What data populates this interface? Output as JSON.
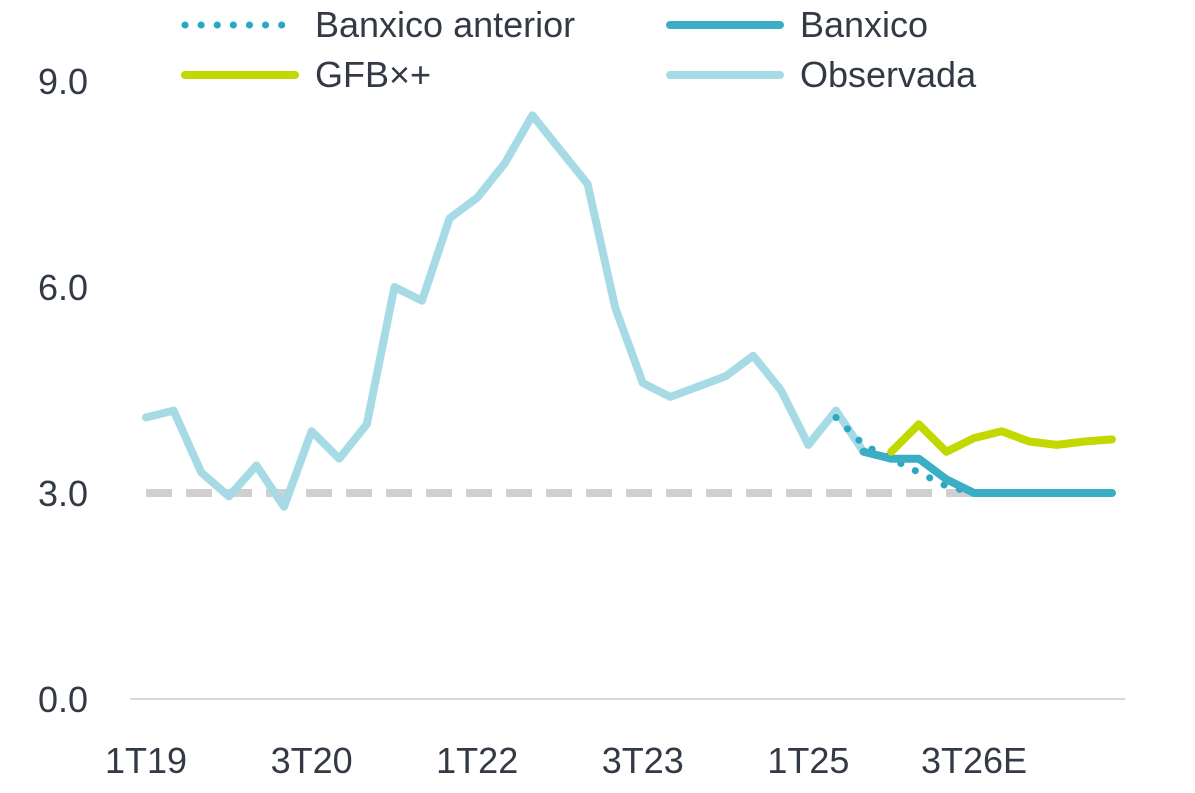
{
  "chart_data": {
    "type": "line",
    "title": "",
    "xlabel": "",
    "ylabel": "",
    "ylim": [
      0,
      9
    ],
    "y_ticks": [
      "0.0",
      "3.0",
      "6.0",
      "9.0"
    ],
    "x_tick_labels": [
      "1T19",
      "3T20",
      "1T22",
      "3T23",
      "1T25",
      "3T26E"
    ],
    "grid": false,
    "legend_position": "top",
    "reference_line": {
      "value": 3.0,
      "style": "dashed",
      "color": "#d0d0d0"
    },
    "categories": [
      "1T19",
      "2T19",
      "3T19",
      "4T19",
      "1T20",
      "2T20",
      "3T20",
      "4T20",
      "1T21",
      "2T21",
      "3T21",
      "4T21",
      "1T22",
      "2T22",
      "3T22",
      "4T22",
      "1T23",
      "2T23",
      "3T23",
      "4T23",
      "1T24",
      "2T24",
      "3T24",
      "4T24",
      "1T25",
      "2T25",
      "3T25",
      "4T25",
      "1T26",
      "2T26",
      "3T26E",
      "4T26E",
      "1T27E",
      "2T27E",
      "3T27E",
      "4T27E"
    ],
    "series": [
      {
        "name": "Observada",
        "color": "#a6dbe6",
        "style": "solid",
        "values": [
          4.1,
          4.2,
          3.3,
          2.95,
          3.4,
          2.8,
          3.9,
          3.5,
          4.0,
          6.0,
          5.8,
          7.0,
          7.3,
          7.8,
          8.5,
          8.0,
          7.5,
          5.7,
          4.6,
          4.4,
          4.55,
          4.7,
          5.0,
          4.5,
          3.7,
          4.2,
          3.6,
          null,
          null,
          null,
          null,
          null,
          null,
          null,
          null,
          null
        ]
      },
      {
        "name": "Banxico anterior",
        "color": "#2aa8c2",
        "style": "dotted",
        "values": [
          null,
          null,
          null,
          null,
          null,
          null,
          null,
          null,
          null,
          null,
          null,
          null,
          null,
          null,
          null,
          null,
          null,
          null,
          null,
          null,
          null,
          null,
          null,
          null,
          null,
          4.1,
          3.7,
          3.5,
          3.3,
          3.1,
          3.0,
          3.0,
          3.0,
          3.0,
          3.0,
          3.0
        ]
      },
      {
        "name": "Banxico",
        "color": "#3aaec5",
        "style": "solid",
        "values": [
          null,
          null,
          null,
          null,
          null,
          null,
          null,
          null,
          null,
          null,
          null,
          null,
          null,
          null,
          null,
          null,
          null,
          null,
          null,
          null,
          null,
          null,
          null,
          null,
          null,
          null,
          3.6,
          3.5,
          3.5,
          3.2,
          3.0,
          3.0,
          3.0,
          3.0,
          3.0,
          3.0
        ]
      },
      {
        "name": "GFB×+",
        "color": "#c3d800",
        "style": "solid",
        "values": [
          null,
          null,
          null,
          null,
          null,
          null,
          null,
          null,
          null,
          null,
          null,
          null,
          null,
          null,
          null,
          null,
          null,
          null,
          null,
          null,
          null,
          null,
          null,
          null,
          null,
          null,
          null,
          3.6,
          4.0,
          3.6,
          3.8,
          3.9,
          3.75,
          3.7,
          3.75,
          3.78
        ]
      }
    ]
  }
}
